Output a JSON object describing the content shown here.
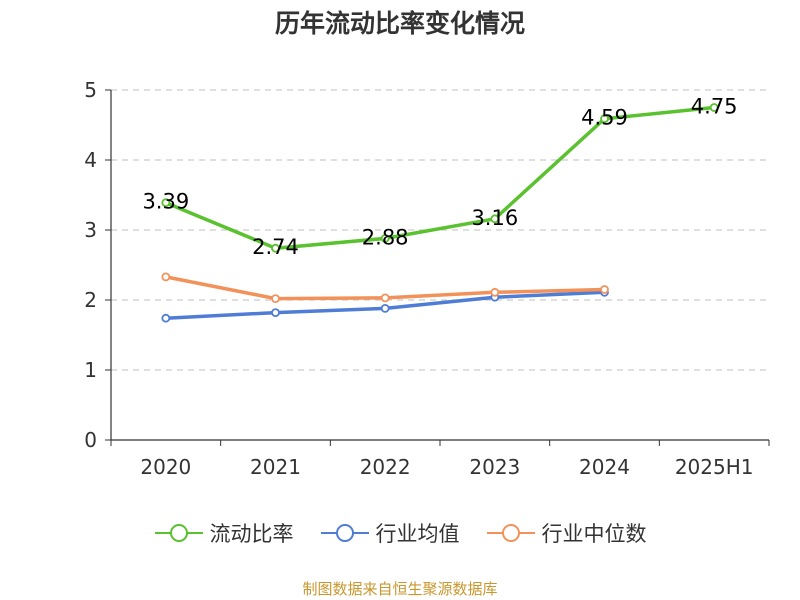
{
  "chart_data": {
    "type": "line",
    "title": "历年流动比率变化情况",
    "categories": [
      "2020",
      "2021",
      "2022",
      "2023",
      "2024",
      "2025H1"
    ],
    "ylim": [
      0,
      5
    ],
    "yticks": [
      "0",
      "1",
      "2",
      "3",
      "4",
      "5"
    ],
    "grid": true,
    "legend_position": "bottom",
    "series": [
      {
        "name": "流动比率",
        "color": "#5ac12f",
        "values": [
          3.39,
          2.74,
          2.88,
          3.16,
          4.59,
          4.75
        ],
        "labels": [
          "3.39",
          "2.74",
          "2.88",
          "3.16",
          "4.59",
          "4.75"
        ]
      },
      {
        "name": "行业均值",
        "color": "#4f7dd6",
        "values": [
          1.74,
          1.82,
          1.88,
          2.04,
          2.11,
          null
        ]
      },
      {
        "name": "行业中位数",
        "color": "#f2925a",
        "values": [
          2.33,
          2.02,
          2.03,
          2.11,
          2.15,
          null
        ]
      }
    ]
  },
  "source": "制图数据来自恒生聚源数据库"
}
